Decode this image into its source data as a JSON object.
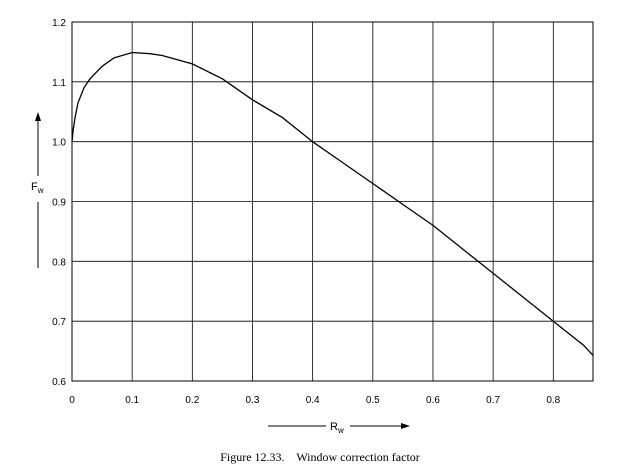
{
  "chart_data": {
    "type": "line",
    "caption": "Figure 12.33.    Window correction factor",
    "ylabel": {
      "main": "F",
      "sub": "w"
    },
    "xlabel": {
      "main": "R",
      "sub": "w"
    },
    "xlim": [
      0,
      0.866
    ],
    "ylim": [
      0.6,
      1.2
    ],
    "xticks": [
      0,
      0.1,
      0.2,
      0.3,
      0.4,
      0.5,
      0.6,
      0.7,
      0.8
    ],
    "xtick_labels": [
      "0",
      "0.1",
      "0.2",
      "0.3",
      "0.4",
      "0.5",
      "0.6",
      "0.7",
      "0.8"
    ],
    "yticks": [
      0.6,
      0.7,
      0.8,
      0.9,
      1.0,
      1.1,
      1.2
    ],
    "ytick_labels": [
      "0.6",
      "0.7",
      "0.8",
      "0.9",
      "1.0",
      "1.1",
      "1.2"
    ],
    "grid": true,
    "series": [
      {
        "x": [
          0,
          0.002,
          0.005,
          0.01,
          0.02,
          0.03,
          0.05,
          0.07,
          0.1,
          0.13,
          0.15,
          0.2,
          0.25,
          0.3,
          0.35,
          0.4,
          0.45,
          0.5,
          0.55,
          0.6,
          0.65,
          0.7,
          0.75,
          0.8,
          0.85,
          0.866
        ],
        "y": [
          1.0,
          1.02,
          1.04,
          1.065,
          1.09,
          1.105,
          1.126,
          1.14,
          1.149,
          1.147,
          1.144,
          1.13,
          1.105,
          1.07,
          1.04,
          1.0,
          0.965,
          0.93,
          0.895,
          0.86,
          0.82,
          0.78,
          0.74,
          0.7,
          0.66,
          0.643
        ]
      }
    ]
  }
}
